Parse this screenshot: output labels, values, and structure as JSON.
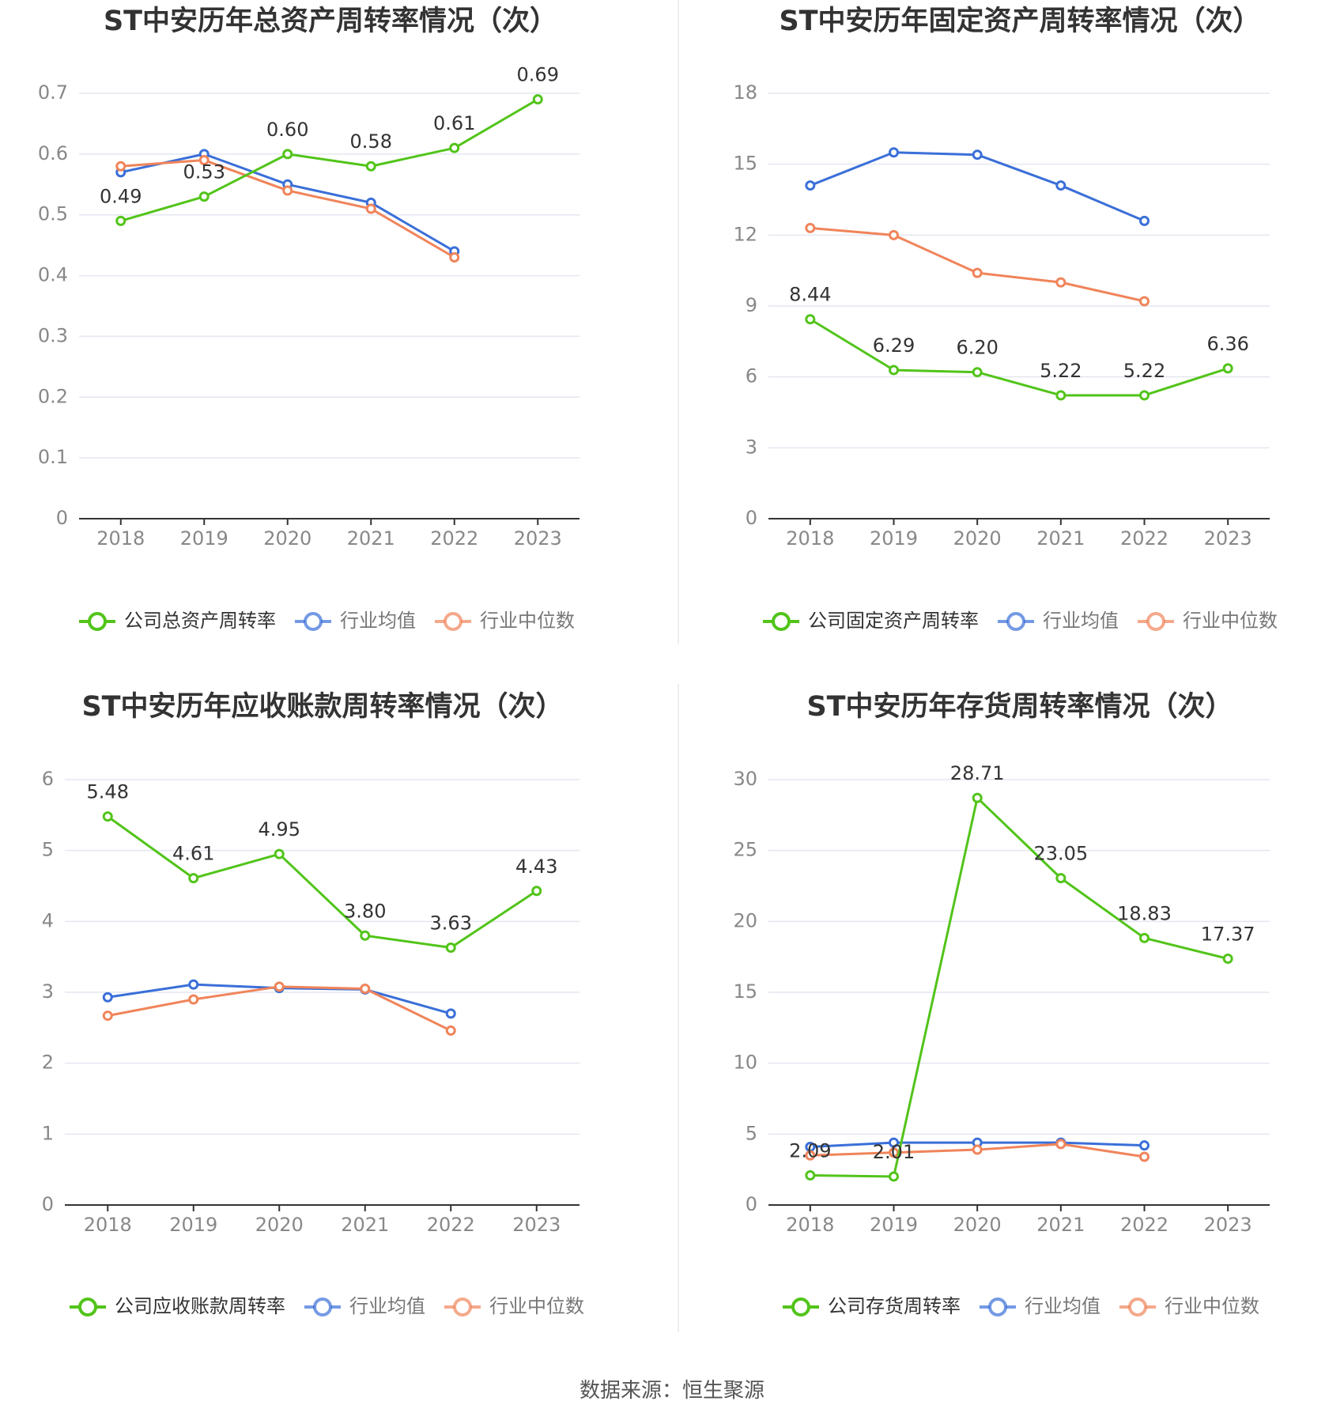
{
  "source_text": "数据来源：恒生聚源",
  "colors": {
    "company": "#52c41a",
    "average": "#3a6fd8",
    "median": "#f0845a",
    "grid": "#e4e7f0",
    "axis": "#333333",
    "tick": "#888888"
  },
  "chart_data": [
    {
      "type": "line",
      "title": "ST中安历年总资产周转率情况（次）",
      "categories": [
        "2018",
        "2019",
        "2020",
        "2021",
        "2022",
        "2023"
      ],
      "y_ticks": [
        "0",
        "0.1",
        "0.2",
        "0.3",
        "0.4",
        "0.5",
        "0.6",
        "0.7"
      ],
      "ylim": [
        0,
        0.7
      ],
      "grid": true,
      "legend_position": "bottom",
      "series": [
        {
          "name": "公司总资产周转率",
          "role": "company",
          "values": [
            0.49,
            0.53,
            0.6,
            0.58,
            0.61,
            0.69
          ],
          "labels": [
            "0.49",
            "0.53",
            "0.60",
            "0.58",
            "0.61",
            "0.69"
          ]
        },
        {
          "name": "行业均值",
          "role": "average",
          "values": [
            0.57,
            0.6,
            0.55,
            0.52,
            0.44,
            null
          ]
        },
        {
          "name": "行业中位数",
          "role": "median",
          "values": [
            0.58,
            0.59,
            0.54,
            0.51,
            0.43,
            null
          ]
        }
      ]
    },
    {
      "type": "line",
      "title": "ST中安历年固定资产周转率情况（次）",
      "categories": [
        "2018",
        "2019",
        "2020",
        "2021",
        "2022",
        "2023"
      ],
      "y_ticks": [
        "0",
        "3",
        "6",
        "9",
        "12",
        "15",
        "18"
      ],
      "ylim": [
        0,
        18
      ],
      "grid": true,
      "legend_position": "bottom",
      "series": [
        {
          "name": "公司固定资产周转率",
          "role": "company",
          "values": [
            8.44,
            6.29,
            6.2,
            5.22,
            5.22,
            6.36
          ],
          "labels": [
            "8.44",
            "6.29",
            "6.20",
            "5.22",
            "5.22",
            "6.36"
          ]
        },
        {
          "name": "行业均值",
          "role": "average",
          "values": [
            14.1,
            15.5,
            15.4,
            14.1,
            12.6,
            null
          ]
        },
        {
          "name": "行业中位数",
          "role": "median",
          "values": [
            12.3,
            12.0,
            10.4,
            10.0,
            9.2,
            null
          ]
        }
      ]
    },
    {
      "type": "line",
      "title": "ST中安历年应收账款周转率情况（次）",
      "categories": [
        "2018",
        "2019",
        "2020",
        "2021",
        "2022",
        "2023"
      ],
      "y_ticks": [
        "0",
        "1",
        "2",
        "3",
        "4",
        "5",
        "6"
      ],
      "ylim": [
        0,
        6
      ],
      "grid": true,
      "legend_position": "bottom",
      "series": [
        {
          "name": "公司应收账款周转率",
          "role": "company",
          "values": [
            5.48,
            4.61,
            4.95,
            3.8,
            3.63,
            4.43
          ],
          "labels": [
            "5.48",
            "4.61",
            "4.95",
            "3.80",
            "3.63",
            "4.43"
          ]
        },
        {
          "name": "行业均值",
          "role": "average",
          "values": [
            2.93,
            3.11,
            3.06,
            3.04,
            2.7,
            null
          ]
        },
        {
          "name": "行业中位数",
          "role": "median",
          "values": [
            2.67,
            2.9,
            3.08,
            3.05,
            2.46,
            null
          ]
        }
      ]
    },
    {
      "type": "line",
      "title": "ST中安历年存货周转率情况（次）",
      "categories": [
        "2018",
        "2019",
        "2020",
        "2021",
        "2022",
        "2023"
      ],
      "y_ticks": [
        "0",
        "5",
        "10",
        "15",
        "20",
        "25",
        "30"
      ],
      "ylim": [
        0,
        30
      ],
      "grid": true,
      "legend_position": "bottom",
      "series": [
        {
          "name": "公司存货周转率",
          "role": "company",
          "values": [
            2.09,
            2.01,
            28.71,
            23.05,
            18.83,
            17.37
          ],
          "labels": [
            "2.09",
            "2.01",
            "28.71",
            "23.05",
            "18.83",
            "17.37"
          ]
        },
        {
          "name": "行业均值",
          "role": "average",
          "values": [
            4.1,
            4.4,
            4.4,
            4.4,
            4.2,
            null
          ]
        },
        {
          "name": "行业中位数",
          "role": "median",
          "values": [
            3.5,
            3.7,
            3.9,
            4.3,
            3.4,
            null
          ]
        }
      ]
    }
  ]
}
